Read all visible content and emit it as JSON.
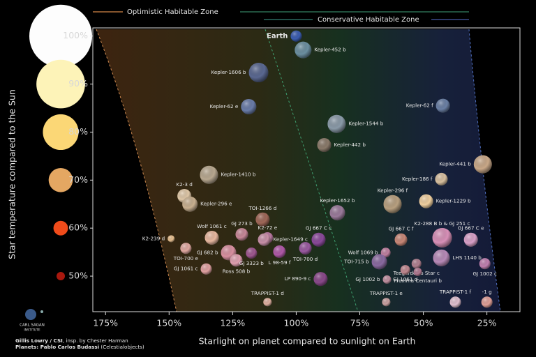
{
  "chart_data": {
    "type": "scatter",
    "x_label": "Starlight on planet compared to sunlight on Earth",
    "y_label": "Star temperature compared to the Sun",
    "legend": {
      "optimistic": "Optimistic Habitable Zone",
      "conservative": "Conservative Habitable Zone"
    },
    "xlim": [
      180,
      12
    ],
    "ylim": [
      42.6,
      101.7
    ],
    "xticks": [
      {
        "value": 175,
        "label": "175%"
      },
      {
        "value": 150,
        "label": "150%"
      },
      {
        "value": 125,
        "label": "125%"
      },
      {
        "value": 100,
        "label": "100%"
      },
      {
        "value": 75,
        "label": "75%"
      },
      {
        "value": 50,
        "label": "50%"
      },
      {
        "value": 25,
        "label": "25%"
      }
    ],
    "yticks": [
      {
        "value": 100,
        "label": "100%"
      },
      {
        "value": 90,
        "label": "90%"
      },
      {
        "value": 80,
        "label": "80%"
      },
      {
        "value": 70,
        "label": "70%"
      },
      {
        "value": 60,
        "label": "60%"
      },
      {
        "value": 50,
        "label": "50%"
      }
    ],
    "star_colors": [
      "#fdfdfd",
      "#fdf3b8",
      "#fbd776",
      "#e4a762",
      "#f04b1a",
      "#a8180e"
    ],
    "labels": [
      "Earth",
      "Kepler-452 b",
      "Kepler-1606 b",
      "Kepler-62 e",
      "Kepler-62 f",
      "Kepler-1544 b",
      "Kepler-442 b",
      "Kepler-441 b",
      "Kepler-186 f",
      "Kepler-1410 b",
      "K2-3 d",
      "Kepler-296 e",
      "Kepler-296 f",
      "Kepler-1229 b",
      "Kepler-1652 b",
      "TOI-1266 d",
      "K2-288 B b & GJ 251 c",
      "GJ 667 C e",
      "GJ 667 C f",
      "K2-239 d",
      "Wolf 1061 c",
      "GJ 273 b",
      "K2-72 e",
      "Kepler-1649 c",
      "GJ 667 C c",
      "TOI-700 e",
      "GJ 682 b",
      "Ross 508 b",
      "GJ 3323 b",
      "L 98-59 f",
      "TOI-700 d",
      "Wolf 1069 b",
      "TOI-715 b",
      "LHS 1140 b",
      "GJ 1002 c",
      "Teegarden's Star c",
      "GJ 1061 d",
      "GJ 1002 b",
      "GJ 1061 c",
      "LP 890-9 c",
      "Proxima Centauri b",
      "TRAPPIST-1 d",
      "TRAPPIST-1 e",
      "TRAPPIST-1 f",
      "-1 g"
    ],
    "x": [
      100,
      97.3,
      114.8,
      118.7,
      42.3,
      84.1,
      89,
      26.6,
      42.9,
      134.3,
      144,
      141.8,
      62.1,
      48.9,
      83.8,
      113.2,
      42.6,
      31.3,
      58.8,
      149.2,
      133.2,
      121.4,
      111.3,
      112.6,
      91.2,
      143.4,
      126.6,
      123.6,
      117.6,
      106.6,
      96.4,
      64.8,
      67.3,
      42.9,
      25.8,
      52.7,
      57.1,
      64.3,
      135.4,
      90.4,
      52.2,
      111.3,
      64.6,
      37.4,
      25
    ],
    "values": [
      100,
      97.1,
      92.4,
      85.3,
      85.5,
      81.7,
      77.3,
      73.3,
      70.2,
      71.1,
      66.7,
      65,
      65,
      65.6,
      63.2,
      61.8,
      58,
      57.6,
      57.6,
      57.8,
      58,
      58.7,
      58,
      57.6,
      57.6,
      55.8,
      54.9,
      53.3,
      54.8,
      55.1,
      55.8,
      54.9,
      53,
      53.8,
      52.6,
      52.6,
      51.3,
      49.3,
      51.5,
      49.4,
      50.9,
      44.6,
      44.6,
      44.6,
      44.6
    ],
    "sizes": [
      8,
      12,
      14,
      11,
      10,
      13,
      10,
      13,
      9,
      13,
      10,
      11,
      13,
      10,
      11,
      10,
      14,
      10,
      9,
      5,
      10,
      9,
      8,
      9,
      10,
      8,
      11,
      9,
      8,
      9,
      9,
      7,
      11,
      12,
      8,
      7,
      7,
      6,
      8,
      10,
      6,
      6,
      6,
      8,
      8
    ],
    "colors": [
      "#3b5db0",
      "#6c8fa0",
      "#5a6890",
      "#6a7ca8",
      "#6b80a5",
      "#8a9aa8",
      "#8a7a6a",
      "#c9a888",
      "#d8c0a0",
      "#b8a890",
      "#e0c8a8",
      "#c8b090",
      "#b8a080",
      "#f0d0a0",
      "#9a7a9a",
      "#a06858",
      "#d890b8",
      "#d8a0c8",
      "#c88878",
      "#e8c090",
      "#e8b8a0",
      "#c88898",
      "#b878a0",
      "#c890a8",
      "#8a4a9a",
      "#e0a8a0",
      "#d890a0",
      "#e0a0b0",
      "#a05890",
      "#b05aa8",
      "#9a5aa0",
      "#c080a0",
      "#8a6aa0",
      "#b88ab8",
      "#c080b0",
      "#b08090",
      "#c08890",
      "#c090a0",
      "#e0a0a0",
      "#8a4a8a",
      "#b07890",
      "#e0b0a0",
      "#c8a0a0",
      "#e0c0d0",
      "#e0a098"
    ]
  },
  "credits": {
    "line1_bold": "Gillis Lowry / CSI",
    "line1_rest": ", insp. by Chester Harman",
    "line2_bold": "Planets: Pablo Carlos Budassi",
    "line2_rest": " (Celestialobjects)"
  },
  "logo": {
    "line1": "CARL SAGAN",
    "line2": "INSTITUTE"
  }
}
